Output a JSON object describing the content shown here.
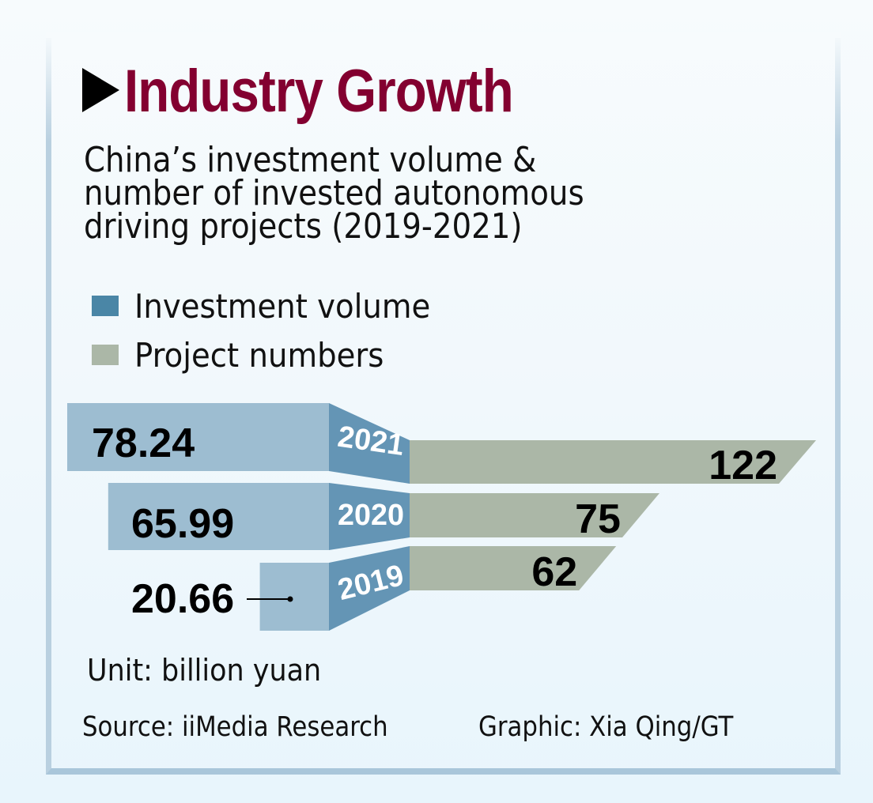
{
  "header": {
    "title": "Industry Growth",
    "subtitle_lines": [
      "China’s investment volume &",
      "number of invested autonomous",
      "driving projects (2019-2021)"
    ]
  },
  "colors": {
    "title": "#830030",
    "investment_front": "#9dbdd1",
    "investment_side": "#6495b5",
    "investment_legend": "#4a86a6",
    "projects": "#abb7a7",
    "frame": "#b0cadc"
  },
  "chart_data": {
    "type": "bar",
    "title": "Industry Growth",
    "subtitle": "China’s investment volume & number of invested autonomous driving projects (2019-2021)",
    "categories": [
      "2021",
      "2020",
      "2019"
    ],
    "series": [
      {
        "name": "Investment volume",
        "unit": "billion yuan",
        "values": [
          78.24,
          65.99,
          20.66
        ],
        "labels": [
          "78.24",
          "65.99",
          "20.66"
        ]
      },
      {
        "name": "Project numbers",
        "values": [
          122,
          75,
          62
        ],
        "labels": [
          "122",
          "75",
          "62"
        ]
      }
    ],
    "legend": [
      {
        "label": "Investment volume",
        "color": "#4a86a6"
      },
      {
        "label": "Project numbers",
        "color": "#abb7a7"
      }
    ],
    "legend_position": "top-left",
    "orientation": "horizontal-diverging",
    "grid": false,
    "unit_note": "Unit: billion yuan"
  },
  "footer": {
    "unit": "Unit: billion yuan",
    "source": "Source: iiMedia Research",
    "credit": "Graphic: Xia Qing/GT"
  }
}
